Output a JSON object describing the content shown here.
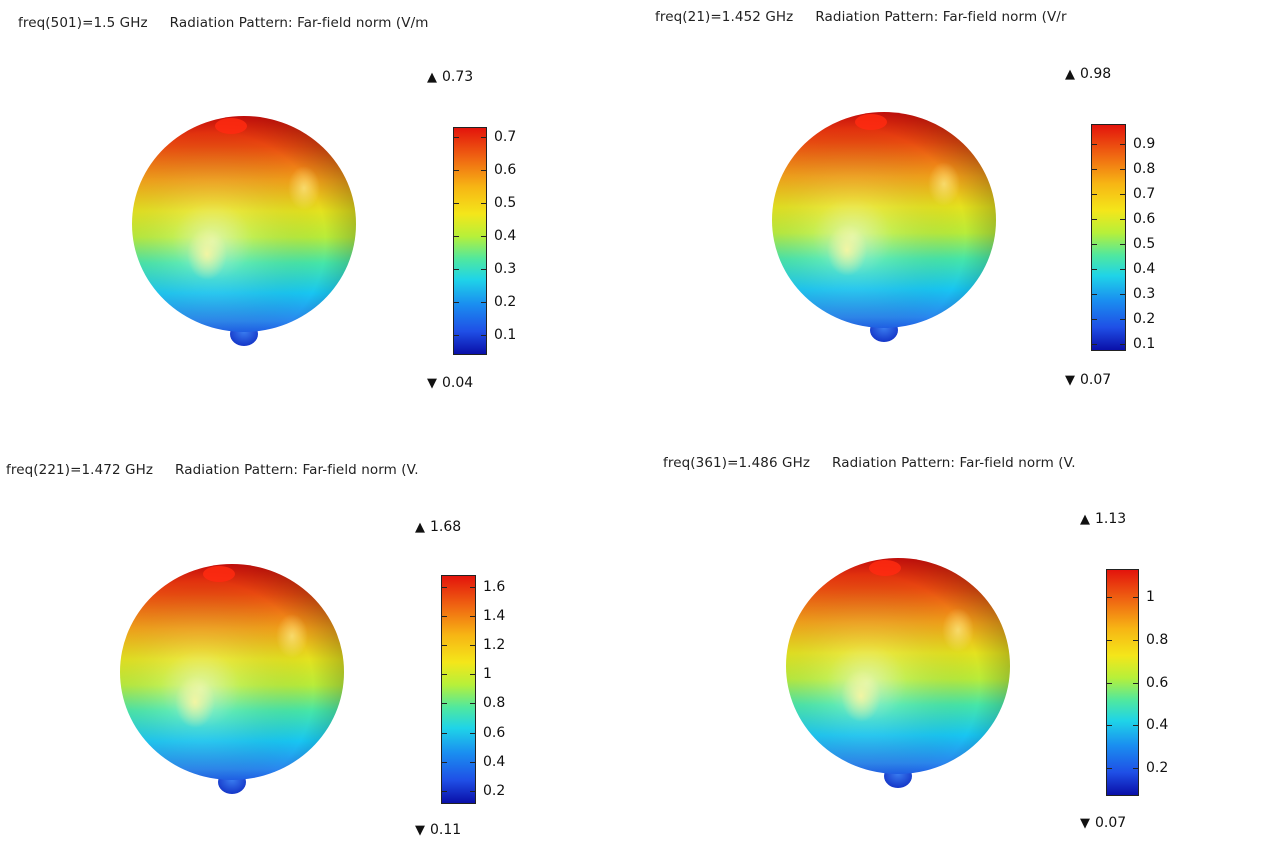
{
  "chart_data": [
    {
      "type": "heatmap",
      "plot": "3D far-field radiation pattern",
      "freq_label": "freq(501)=1.5 GHz",
      "title": "Radiation Pattern: Far-field norm (V/m",
      "max_label": "0.73",
      "min_label": "0.04",
      "colorbar_range": [
        0.04,
        0.73
      ],
      "colorbar_ticks": [
        "0.1",
        "0.2",
        "0.3",
        "0.4",
        "0.5",
        "0.6",
        "0.7"
      ],
      "colormap": "rainbow (blue-cyan-green-yellow-red)"
    },
    {
      "type": "heatmap",
      "plot": "3D far-field radiation pattern",
      "freq_label": "freq(21)=1.452 GHz",
      "title": "Radiation Pattern: Far-field norm (V/r",
      "max_label": "0.98",
      "min_label": "0.07",
      "colorbar_range": [
        0.07,
        0.98
      ],
      "colorbar_ticks": [
        "0.1",
        "0.2",
        "0.3",
        "0.4",
        "0.5",
        "0.6",
        "0.7",
        "0.8",
        "0.9"
      ],
      "colormap": "rainbow (blue-cyan-green-yellow-red)"
    },
    {
      "type": "heatmap",
      "plot": "3D far-field radiation pattern",
      "freq_label": "freq(221)=1.472 GHz",
      "title": "Radiation Pattern: Far-field norm (V.",
      "max_label": "1.68",
      "min_label": "0.11",
      "colorbar_range": [
        0.11,
        1.68
      ],
      "colorbar_ticks": [
        "0.2",
        "0.4",
        "0.6",
        "0.8",
        "1",
        "1.2",
        "1.4",
        "1.6"
      ],
      "colormap": "rainbow (blue-cyan-green-yellow-red)"
    },
    {
      "type": "heatmap",
      "plot": "3D far-field radiation pattern",
      "freq_label": "freq(361)=1.486 GHz",
      "title": "Radiation Pattern: Far-field norm (V.",
      "max_label": "1.13",
      "min_label": "0.07",
      "colorbar_range": [
        0.07,
        1.13
      ],
      "colorbar_ticks": [
        "0.2",
        "0.4",
        "0.6",
        "0.8",
        "1"
      ],
      "colormap": "rainbow (blue-cyan-green-yellow-red)"
    }
  ]
}
